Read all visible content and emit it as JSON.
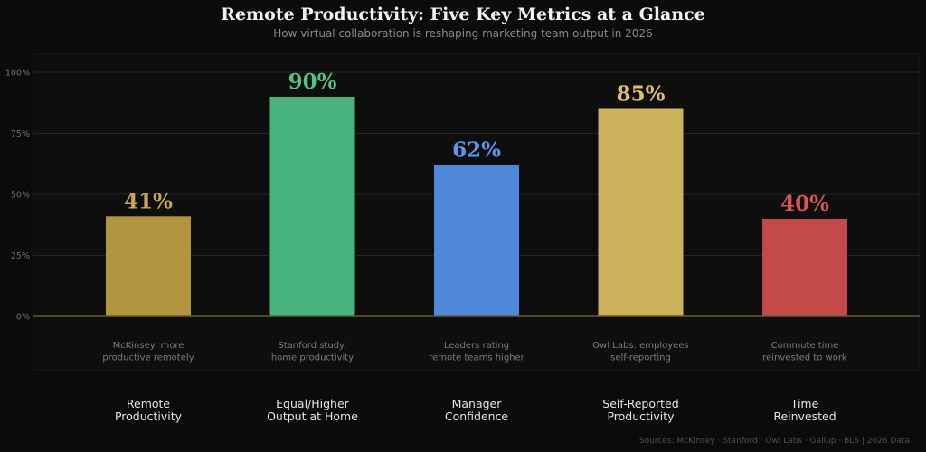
{
  "colors": {
    "background": "#0b0b0b",
    "panel": "#0e0e0e",
    "grid": "#242424",
    "baseline": "#6b5a2e"
  },
  "chart_data": {
    "type": "bar",
    "title": "Remote Productivity: Five Key Metrics at a Glance",
    "subtitle": "How virtual collaboration is reshaping marketing team output in 2026",
    "ylim": [
      0,
      100
    ],
    "yticks": [
      0,
      25,
      50,
      75,
      100
    ],
    "ytick_labels": [
      "0%",
      "25%",
      "50%",
      "75%",
      "100%"
    ],
    "grid": true,
    "bars": [
      {
        "category": [
          "Remote",
          "Productivity"
        ],
        "value": 41,
        "value_label": "41%",
        "note": [
          "McKinsey: more",
          "productive remotely"
        ],
        "color": "#b39440",
        "label_color": "#c9a650"
      },
      {
        "category": [
          "Equal/Higher",
          "Output at Home"
        ],
        "value": 90,
        "value_label": "90%",
        "note": [
          "Stanford study:",
          "home productivity"
        ],
        "color": "#48b37c",
        "label_color": "#52c488"
      },
      {
        "category": [
          "Manager",
          "Confidence"
        ],
        "value": 62,
        "value_label": "62%",
        "note": [
          "Leaders rating",
          "remote teams higher"
        ],
        "color": "#5089db",
        "label_color": "#5b98ee"
      },
      {
        "category": [
          "Self-Reported",
          "Productivity"
        ],
        "value": 85,
        "value_label": "85%",
        "note": [
          "Owl Labs: employees",
          "self-reporting"
        ],
        "color": "#cdb25e",
        "label_color": "#e0c068"
      },
      {
        "category": [
          "Time",
          "Reinvested"
        ],
        "value": 40,
        "value_label": "40%",
        "note": [
          "Commute time",
          "reinvested to work"
        ],
        "color": "#c44a4a",
        "label_color": "#de5454"
      }
    ],
    "source": "Sources: McKinsey · Stanford · Owl Labs · Gallup · BLS  |  2026 Data"
  }
}
